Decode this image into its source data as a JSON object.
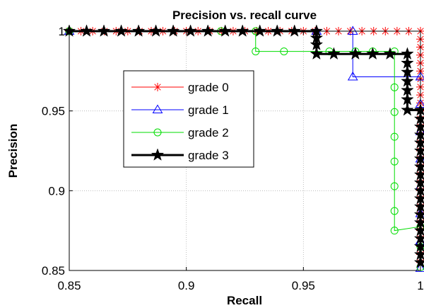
{
  "chart_data": {
    "type": "line",
    "title": "Precision vs. recall curve",
    "xlabel": "Recall",
    "ylabel": "Precision",
    "xlim": [
      0.85,
      1.0
    ],
    "ylim": [
      0.85,
      1.0
    ],
    "xticks": [
      "0.85",
      "0.9",
      "0.95",
      "1"
    ],
    "yticks": [
      "0.85",
      "0.9",
      "0.95",
      "1"
    ],
    "grid": true,
    "legend_position": "upper-left inside",
    "series": [
      {
        "name": "grade 0",
        "color": "#ff0000",
        "marker": "asterisk",
        "points": [
          [
            0.85,
            1.0
          ],
          [
            0.855,
            1.0
          ],
          [
            0.86,
            1.0
          ],
          [
            0.865,
            1.0
          ],
          [
            0.87,
            1.0
          ],
          [
            0.875,
            1.0
          ],
          [
            0.88,
            1.0
          ],
          [
            0.885,
            1.0
          ],
          [
            0.89,
            1.0
          ],
          [
            0.895,
            1.0
          ],
          [
            0.9,
            1.0
          ],
          [
            0.905,
            1.0
          ],
          [
            0.91,
            1.0
          ],
          [
            0.915,
            1.0
          ],
          [
            0.92,
            1.0
          ],
          [
            0.925,
            1.0
          ],
          [
            0.93,
            1.0
          ],
          [
            0.935,
            1.0
          ],
          [
            0.94,
            1.0
          ],
          [
            0.945,
            1.0
          ],
          [
            0.95,
            1.0
          ],
          [
            0.955,
            1.0
          ],
          [
            0.96,
            1.0
          ],
          [
            0.965,
            1.0
          ],
          [
            0.97,
            1.0
          ],
          [
            0.975,
            1.0
          ],
          [
            0.98,
            1.0
          ],
          [
            0.985,
            1.0
          ],
          [
            0.99,
            1.0
          ],
          [
            0.995,
            1.0
          ],
          [
            1.0,
            1.0
          ],
          [
            1.0,
            0.995
          ],
          [
            1.0,
            0.99
          ],
          [
            1.0,
            0.985
          ],
          [
            1.0,
            0.98
          ],
          [
            1.0,
            0.975
          ],
          [
            1.0,
            0.97
          ],
          [
            1.0,
            0.965
          ],
          [
            1.0,
            0.96
          ],
          [
            1.0,
            0.955
          ],
          [
            1.0,
            0.95
          ],
          [
            1.0,
            0.945
          ],
          [
            1.0,
            0.94
          ],
          [
            1.0,
            0.935
          ],
          [
            1.0,
            0.93
          ],
          [
            1.0,
            0.925
          ],
          [
            1.0,
            0.92
          ],
          [
            1.0,
            0.915
          ],
          [
            1.0,
            0.91
          ],
          [
            1.0,
            0.905
          ],
          [
            1.0,
            0.9
          ],
          [
            1.0,
            0.895
          ],
          [
            1.0,
            0.89
          ],
          [
            1.0,
            0.885
          ],
          [
            1.0,
            0.88
          ],
          [
            1.0,
            0.875
          ],
          [
            1.0,
            0.87
          ],
          [
            1.0,
            0.865
          ],
          [
            1.0,
            0.86
          ],
          [
            1.0,
            0.855
          ]
        ]
      },
      {
        "name": "grade 1",
        "color": "#0000ff",
        "marker": "triangle",
        "points": [
          [
            0.85,
            1.0
          ],
          [
            0.9556,
            1.0
          ],
          [
            0.9711,
            1.0
          ],
          [
            0.9711,
            0.9714
          ],
          [
            1.0,
            0.9714
          ],
          [
            1.0,
            0.9543
          ],
          [
            1.0,
            0.9371
          ],
          [
            1.0,
            0.92
          ],
          [
            1.0,
            0.9029
          ],
          [
            1.0,
            0.8857
          ],
          [
            1.0,
            0.8686
          ],
          [
            1.0,
            0.8514
          ]
        ]
      },
      {
        "name": "grade 2",
        "color": "#00dd00",
        "marker": "circle",
        "points": [
          [
            0.85,
            1.0
          ],
          [
            0.9148,
            1.0
          ],
          [
            0.9296,
            1.0
          ],
          [
            0.9296,
            0.9873
          ],
          [
            0.9417,
            0.9873
          ],
          [
            0.9611,
            0.9873
          ],
          [
            0.9722,
            0.9873
          ],
          [
            0.9796,
            0.9873
          ],
          [
            0.9889,
            0.9873
          ],
          [
            0.9889,
            0.9648
          ],
          [
            0.9889,
            0.9493
          ],
          [
            0.9889,
            0.9338
          ],
          [
            0.9889,
            0.9183
          ],
          [
            0.9889,
            0.9028
          ],
          [
            0.9889,
            0.8873
          ],
          [
            0.9889,
            0.875
          ],
          [
            1.0,
            0.8775
          ],
          [
            1.0,
            0.8648
          ],
          [
            1.0,
            0.8521
          ]
        ]
      },
      {
        "name": "grade 3",
        "color": "#000000",
        "marker": "star",
        "points": [
          [
            0.85,
            1.0
          ],
          [
            0.8574,
            1.0
          ],
          [
            0.8648,
            1.0
          ],
          [
            0.8722,
            1.0
          ],
          [
            0.8796,
            1.0
          ],
          [
            0.887,
            1.0
          ],
          [
            0.8944,
            1.0
          ],
          [
            0.9018,
            1.0
          ],
          [
            0.9092,
            1.0
          ],
          [
            0.9166,
            1.0
          ],
          [
            0.924,
            1.0
          ],
          [
            0.9314,
            1.0
          ],
          [
            0.9388,
            1.0
          ],
          [
            0.9462,
            1.0
          ],
          [
            0.9556,
            1.0
          ],
          [
            0.9556,
            0.9957
          ],
          [
            0.9556,
            0.9915
          ],
          [
            0.9556,
            0.9857
          ],
          [
            0.963,
            0.9857
          ],
          [
            0.9722,
            0.9857
          ],
          [
            0.9796,
            0.9857
          ],
          [
            0.987,
            0.9857
          ],
          [
            0.9944,
            0.9857
          ],
          [
            0.9944,
            0.98
          ],
          [
            0.9944,
            0.9743
          ],
          [
            0.9944,
            0.9686
          ],
          [
            0.9944,
            0.9629
          ],
          [
            0.9944,
            0.9571
          ],
          [
            0.9944,
            0.9505
          ],
          [
            1.0,
            0.9505
          ],
          [
            1.0,
            0.945
          ],
          [
            1.0,
            0.94
          ],
          [
            1.0,
            0.935
          ],
          [
            1.0,
            0.93
          ],
          [
            1.0,
            0.925
          ],
          [
            1.0,
            0.92
          ],
          [
            1.0,
            0.915
          ],
          [
            1.0,
            0.91
          ],
          [
            1.0,
            0.905
          ],
          [
            1.0,
            0.9
          ],
          [
            1.0,
            0.895
          ],
          [
            1.0,
            0.89
          ],
          [
            1.0,
            0.885
          ],
          [
            1.0,
            0.88
          ],
          [
            1.0,
            0.875
          ],
          [
            1.0,
            0.87
          ],
          [
            1.0,
            0.865
          ],
          [
            1.0,
            0.86
          ],
          [
            1.0,
            0.855
          ]
        ]
      }
    ]
  }
}
